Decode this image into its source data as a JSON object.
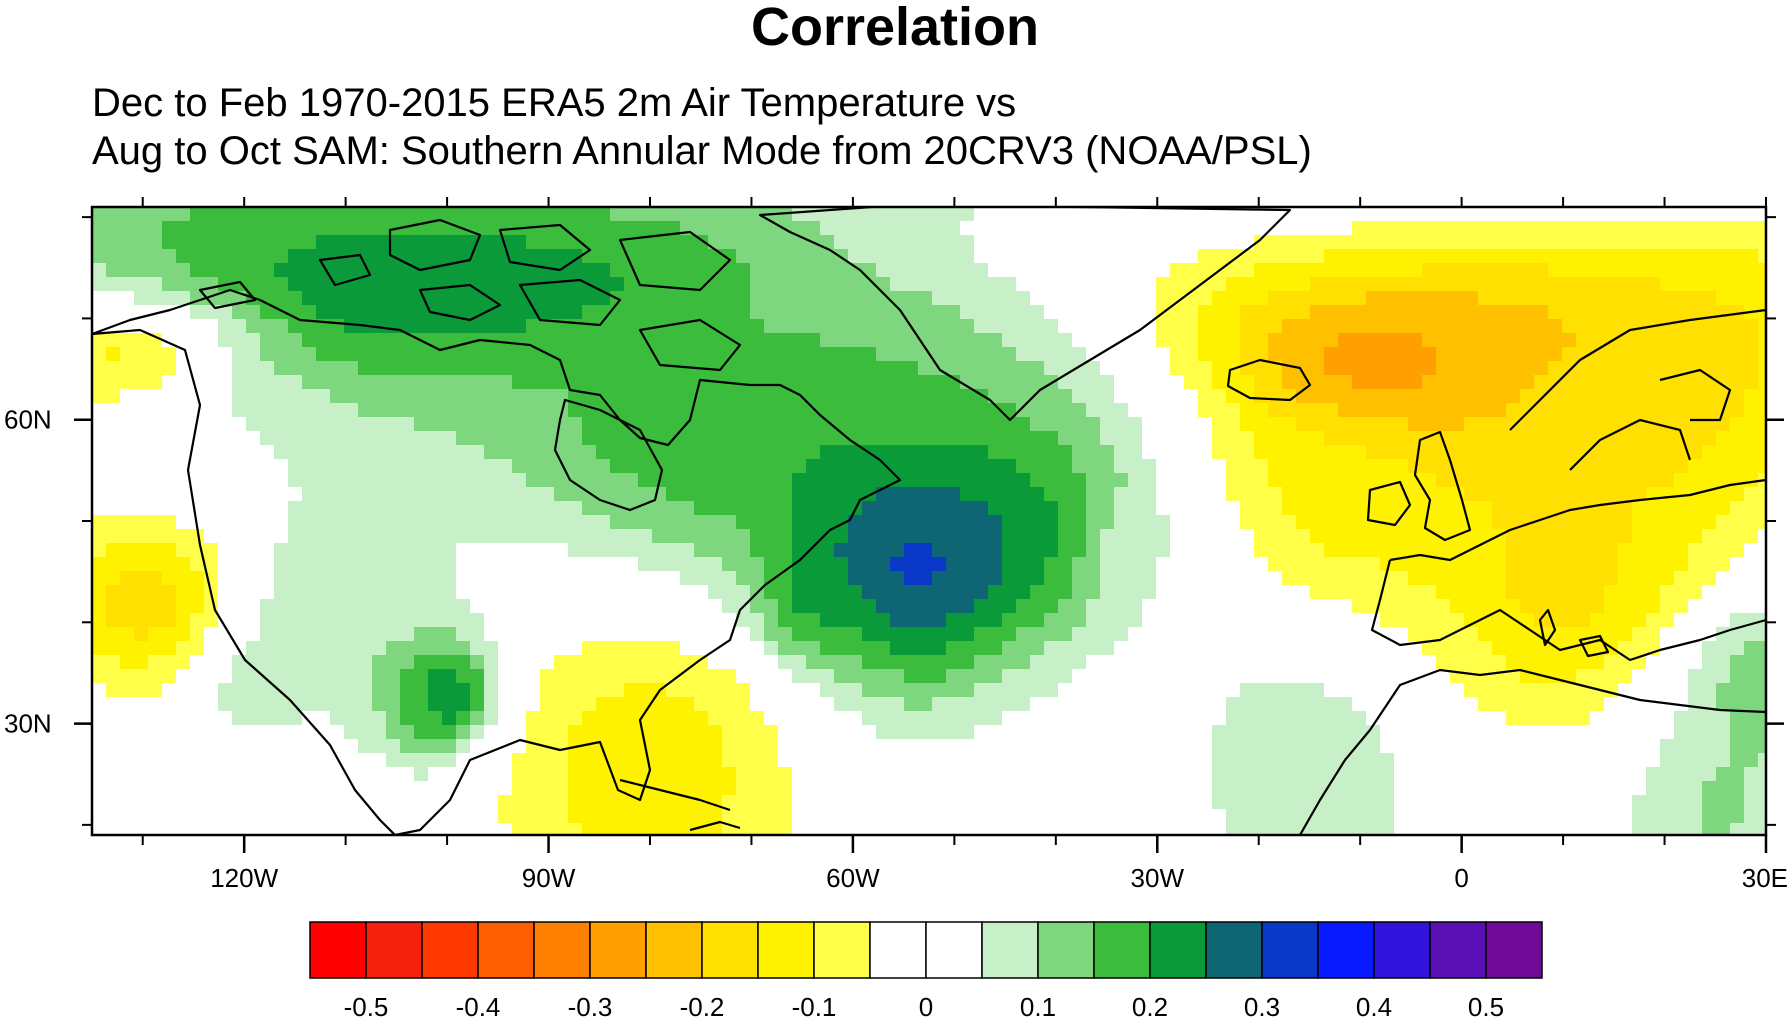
{
  "title": "Correlation",
  "subtitle_line1": "Dec to Feb 1970-2015 ERA5 2m Air Temperature vs",
  "subtitle_line2": "Aug to Oct SAM: Southern Annular Mode from 20CRV3 (NOAA/PSL)",
  "map": {
    "projection": "cylindrical-equidistant",
    "lon_range": [
      -135,
      30
    ],
    "lat_range": [
      19,
      81
    ],
    "x_ticks": [
      {
        "lon": -120,
        "label": "120W"
      },
      {
        "lon": -90,
        "label": "90W"
      },
      {
        "lon": -60,
        "label": "60W"
      },
      {
        "lon": -30,
        "label": "30W"
      },
      {
        "lon": 0,
        "label": "0"
      },
      {
        "lon": 30,
        "label": "30E"
      }
    ],
    "y_ticks": [
      {
        "lat": 30,
        "label": "30N"
      },
      {
        "lat": 60,
        "label": "60N"
      }
    ],
    "field_blobs": [
      {
        "lon": -95,
        "lat": 68,
        "r": 20,
        "value": 0.1
      },
      {
        "lon": -80,
        "lat": 55,
        "r": 18,
        "value": 0.1
      },
      {
        "lon": -40,
        "lat": 72,
        "r": 20,
        "value": 0.15
      },
      {
        "lon": -105,
        "lat": 73,
        "r": 8,
        "value": 0.25
      },
      {
        "lon": -92,
        "lat": 74,
        "r": 7,
        "value": 0.22
      },
      {
        "lon": -75,
        "lat": 57,
        "r": 10,
        "value": 0.2
      },
      {
        "lon": -58,
        "lat": 47,
        "r": 16,
        "value": 0.22
      },
      {
        "lon": -45,
        "lat": 49,
        "r": 10,
        "value": 0.22
      },
      {
        "lon": -55,
        "lat": 45,
        "r": 9,
        "value": 0.35
      },
      {
        "lon": -65,
        "lat": 41,
        "r": 5,
        "value": 0.32
      },
      {
        "lon": -101,
        "lat": 33,
        "r": 7,
        "value": 0.3
      },
      {
        "lon": -99,
        "lat": 33,
        "r": 3.5,
        "value": 0.36
      },
      {
        "lon": -112,
        "lat": 41,
        "r": 10,
        "value": 0.12
      },
      {
        "lon": -120,
        "lat": 35,
        "r": 6,
        "value": 0.1
      },
      {
        "lon": -15,
        "lat": 25,
        "r": 14,
        "value": 0.1
      },
      {
        "lon": 27,
        "lat": 35,
        "r": 9,
        "value": 0.2
      },
      {
        "lon": 25,
        "lat": 22,
        "r": 12,
        "value": 0.12
      },
      {
        "lon": -3,
        "lat": 64,
        "r": 14,
        "value": -0.25
      },
      {
        "lon": -5,
        "lat": 64,
        "r": 7,
        "value": -0.42
      },
      {
        "lon": 15,
        "lat": 63,
        "r": 14,
        "value": -0.2
      },
      {
        "lon": 10,
        "lat": 44,
        "r": 14,
        "value": -0.18
      },
      {
        "lon": -12,
        "lat": 52,
        "r": 10,
        "value": -0.12
      },
      {
        "lon": -80,
        "lat": 25,
        "r": 18,
        "value": -0.15
      },
      {
        "lon": -130,
        "lat": 42,
        "r": 8,
        "value": -0.2
      },
      {
        "lon": -133,
        "lat": 66,
        "r": 5,
        "value": -0.12
      },
      {
        "lon": -30,
        "lat": 47,
        "r": 5,
        "value": 0.05
      }
    ]
  },
  "colorbar": {
    "colors": [
      "#ff0000",
      "#f5200e",
      "#ff3a00",
      "#ff5f00",
      "#ff8000",
      "#ffa000",
      "#ffc000",
      "#ffe000",
      "#fff200",
      "#ffff4a",
      "#ffffff",
      "#ffffff",
      "#c8f0c8",
      "#7ed67e",
      "#3cbc3c",
      "#0a9a3a",
      "#0e6675",
      "#0a38c8",
      "#0a1aff",
      "#3214dc",
      "#5a10b4",
      "#6e0a96"
    ],
    "bounds": [
      -0.55,
      -0.5,
      -0.45,
      -0.4,
      -0.35,
      -0.3,
      -0.25,
      -0.2,
      -0.15,
      -0.1,
      -0.05,
      0,
      0.05,
      0.1,
      0.15,
      0.2,
      0.25,
      0.3,
      0.35,
      0.4,
      0.45,
      0.5,
      0.55
    ],
    "tick_labels": [
      "-0.5",
      "-0.4",
      "-0.3",
      "-0.2",
      "-0.1",
      "0",
      "0.1",
      "0.2",
      "0.3",
      "0.4",
      "0.5"
    ]
  }
}
